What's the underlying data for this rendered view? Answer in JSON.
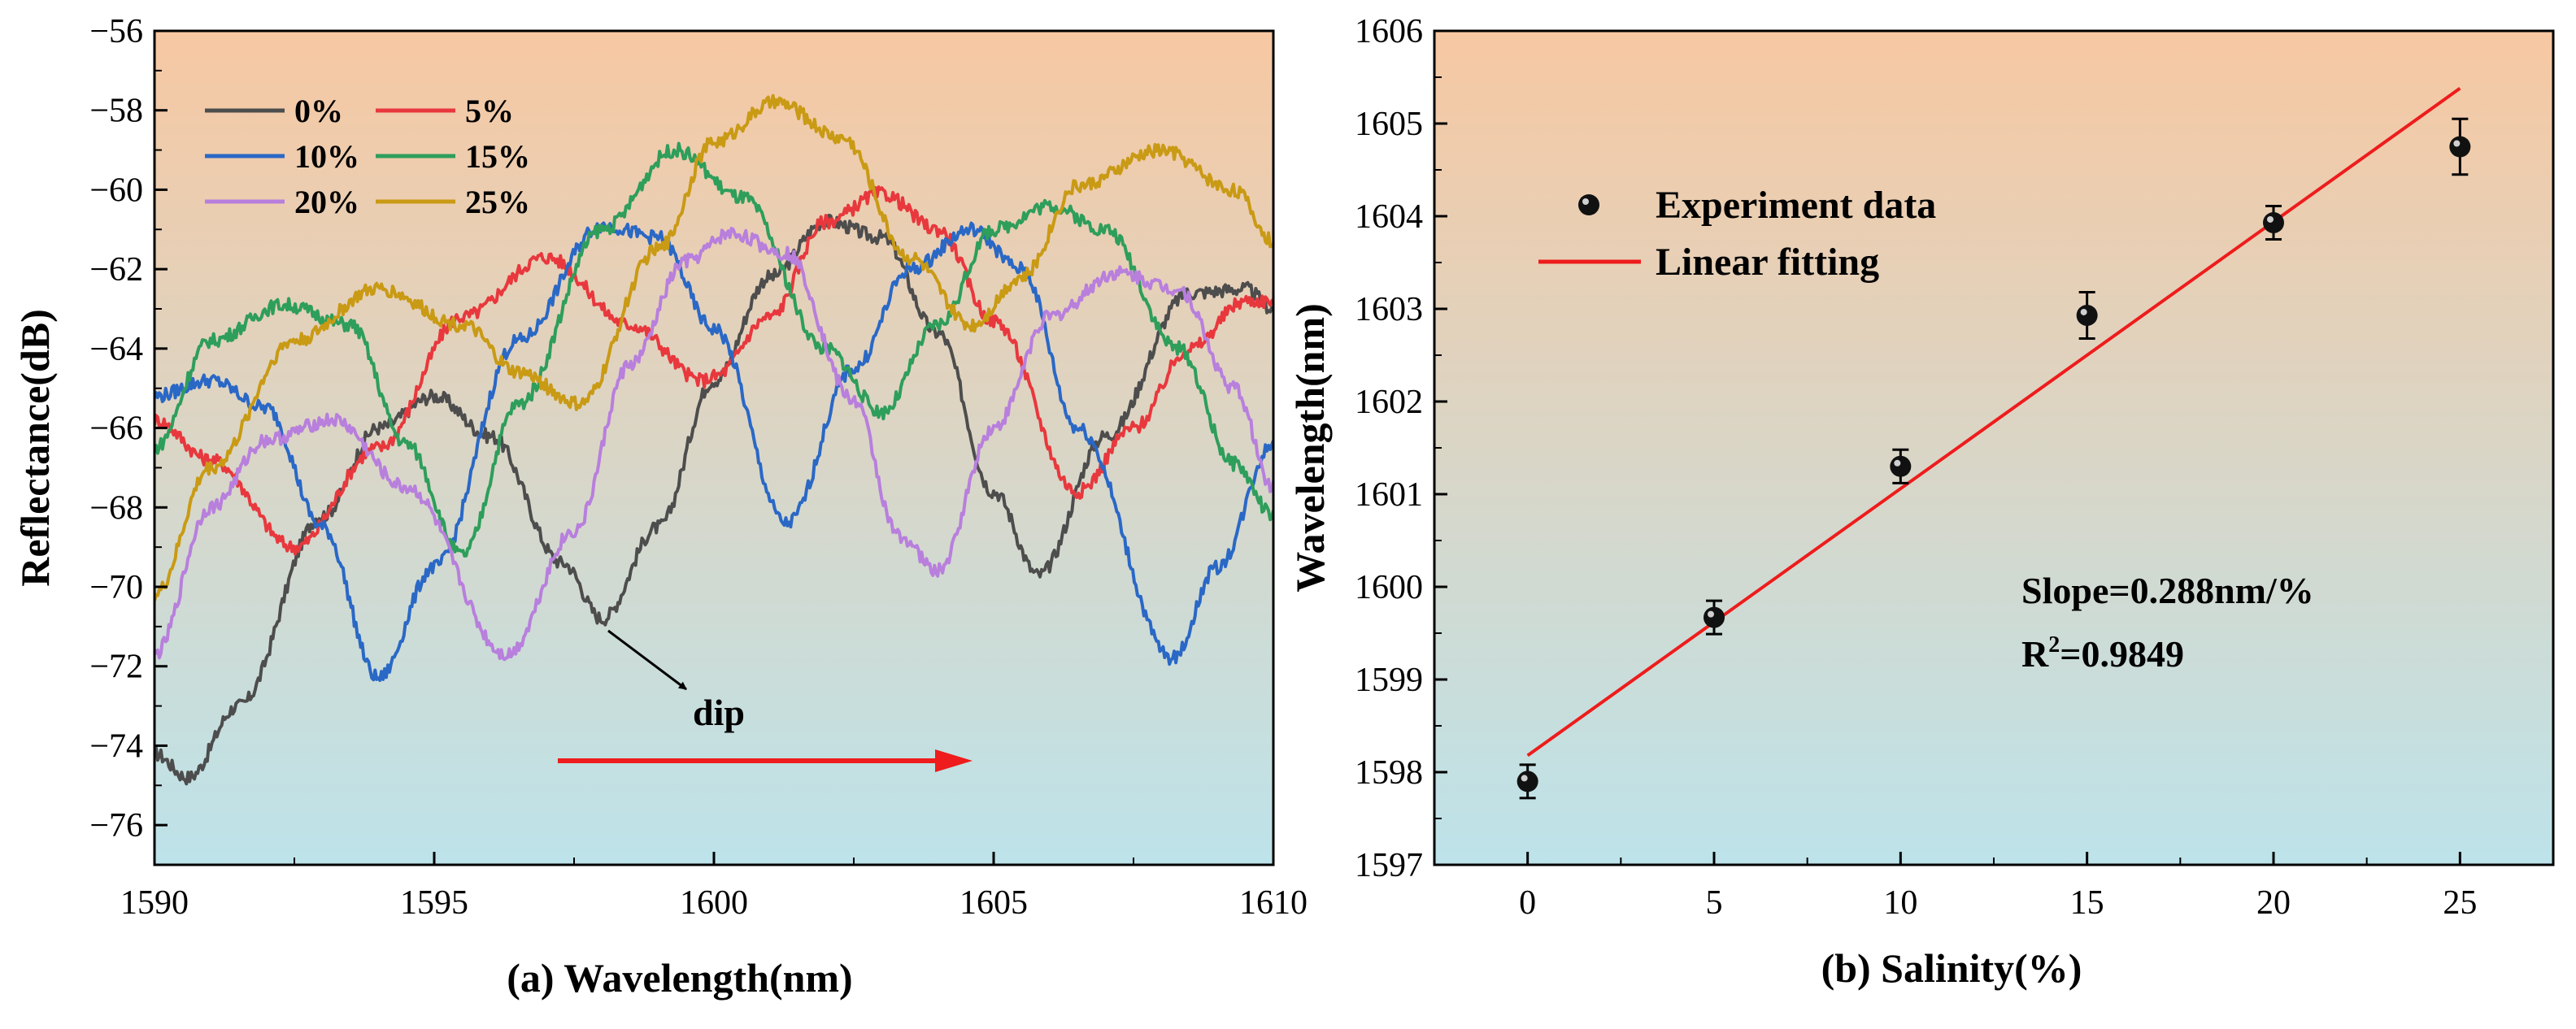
{
  "chart_data": [
    {
      "id": "a",
      "type": "line",
      "title": "",
      "xlabel": "(a)  Wavelength(nm)",
      "ylabel": "Reflectance(dB)",
      "xlim": [
        1590,
        1610
      ],
      "ylim": [
        -77,
        -56
      ],
      "xticks": [
        1590,
        1595,
        1600,
        1605,
        1610
      ],
      "yticks": [
        -56,
        -58,
        -60,
        -62,
        -64,
        -66,
        -68,
        -70,
        -72,
        -74,
        -76
      ],
      "grid": false,
      "legend_position": "top-left",
      "background_gradient": [
        "#f7c8a2",
        "#bde3ea"
      ],
      "annotation": {
        "text": "dip"
      },
      "series": [
        {
          "name": "0%",
          "color": "#4d4d4d",
          "x": [
            1590,
            1590.6,
            1591.5,
            1593,
            1594,
            1595,
            1596,
            1597.3,
            1598,
            1599,
            1600,
            1601,
            1602,
            1603,
            1604,
            1605,
            1605.8,
            1607,
            1608.5,
            1609.5,
            1610
          ],
          "y": [
            -74.2,
            -74.8,
            -73,
            -68.2,
            -66,
            -65.2,
            -66.2,
            -69.4,
            -70.8,
            -68.5,
            -64.8,
            -62.2,
            -60.8,
            -61.2,
            -63.6,
            -67.6,
            -69.7,
            -66.2,
            -62.6,
            -62.5,
            -63
          ]
        },
        {
          "name": "5%",
          "color": "#e8383d",
          "x": [
            1590,
            1591,
            1592.5,
            1594,
            1595.5,
            1597,
            1598.5,
            1599.8,
            1600,
            1601,
            1602,
            1603,
            1604,
            1605,
            1606.5,
            1607.5,
            1608.5,
            1609.5,
            1610
          ],
          "y": [
            -65.8,
            -66.8,
            -69,
            -66.5,
            -63.2,
            -61.7,
            -63.4,
            -64.8,
            -64.7,
            -63.2,
            -60.8,
            -60.1,
            -61,
            -63.3,
            -67.6,
            -66,
            -64,
            -62.8,
            -62.8
          ]
        },
        {
          "name": "10%",
          "color": "#2a68c6",
          "x": [
            1590,
            1591,
            1592,
            1593,
            1594,
            1595,
            1596.5,
            1598,
            1599,
            1600,
            1601.3,
            1602.5,
            1603.5,
            1604.6,
            1605.5,
            1606.5,
            1608.2,
            1609,
            1610
          ],
          "y": [
            -65.2,
            -64.8,
            -65.5,
            -68.5,
            -72.3,
            -69.5,
            -63.8,
            -60.9,
            -61.2,
            -63.5,
            -68.4,
            -64.5,
            -62,
            -61,
            -62,
            -66,
            -71.8,
            -69.5,
            -66.4
          ]
        },
        {
          "name": "15%",
          "color": "#2e9e5b",
          "x": [
            1590,
            1591,
            1592.3,
            1593.5,
            1594.5,
            1595.5,
            1596.5,
            1598,
            1599.3,
            1600.5,
            1602,
            1603,
            1604,
            1605,
            1606,
            1607,
            1608.3,
            1609.3,
            1610
          ],
          "y": [
            -66.5,
            -63.8,
            -62.9,
            -63.4,
            -66.4,
            -69.2,
            -65.4,
            -61,
            -59,
            -60.2,
            -64,
            -65.6,
            -63.4,
            -61,
            -60.4,
            -61,
            -64,
            -66.9,
            -68.2
          ]
        },
        {
          "name": "20%",
          "color": "#b87fdd",
          "x": [
            1590,
            1591,
            1592,
            1593.2,
            1594.5,
            1596.3,
            1597.5,
            1598.5,
            1599.5,
            1600.3,
            1601.3,
            1602.5,
            1603.3,
            1604,
            1605,
            1606,
            1607.2,
            1608.3,
            1609.3,
            1610
          ],
          "y": [
            -71.7,
            -68,
            -66.3,
            -65.8,
            -67.5,
            -71.7,
            -68.6,
            -64.4,
            -61.8,
            -61.1,
            -61.6,
            -65.3,
            -68.7,
            -69.6,
            -66,
            -63.2,
            -62.1,
            -62.5,
            -65,
            -67.5
          ]
        },
        {
          "name": "25%",
          "color": "#c99a14",
          "x": [
            1590,
            1591,
            1592.5,
            1594,
            1595.5,
            1596.5,
            1597.6,
            1599,
            1600,
            1601.1,
            1602.3,
            1603.5,
            1604.6,
            1605.5,
            1606.5,
            1608,
            1609.3,
            1610
          ],
          "y": [
            -70.2,
            -67,
            -63.8,
            -62.5,
            -63.4,
            -64.6,
            -65.4,
            -61.5,
            -58.8,
            -57.8,
            -58.7,
            -61.7,
            -63.4,
            -62.2,
            -59.9,
            -59,
            -60,
            -61.3
          ]
        }
      ]
    },
    {
      "id": "b",
      "type": "scatter",
      "title": "",
      "xlabel": "(b)  Salinity(%)",
      "ylabel": "Wavelength(nm)",
      "xlim": [
        -2.5,
        27.5
      ],
      "ylim": [
        1597,
        1606
      ],
      "xticks": [
        0,
        5,
        10,
        15,
        20,
        25
      ],
      "yticks": [
        1597,
        1598,
        1599,
        1600,
        1601,
        1602,
        1603,
        1604,
        1605,
        1606
      ],
      "grid": false,
      "legend_position": "top-left",
      "background_gradient": [
        "#f7c8a2",
        "#bde3ea"
      ],
      "series": [
        {
          "name": "Experiment data",
          "kind": "scatter",
          "color": "#111111",
          "x": [
            0,
            5,
            10,
            15,
            20,
            25
          ],
          "y": [
            1597.9,
            1599.67,
            1601.3,
            1602.93,
            1603.93,
            1604.75
          ],
          "error": [
            0.18,
            0.18,
            0.18,
            0.25,
            0.18,
            0.3
          ]
        },
        {
          "name": "Linear fitting",
          "kind": "line",
          "color": "#ee1c1c",
          "x": [
            0,
            25
          ],
          "y": [
            1598.18,
            1605.38
          ]
        }
      ],
      "annotations": {
        "slope": "Slope=0.288nm/%",
        "r2_prefix": "R",
        "r2_sup": "2",
        "r2_value": "=0.9849"
      }
    }
  ]
}
